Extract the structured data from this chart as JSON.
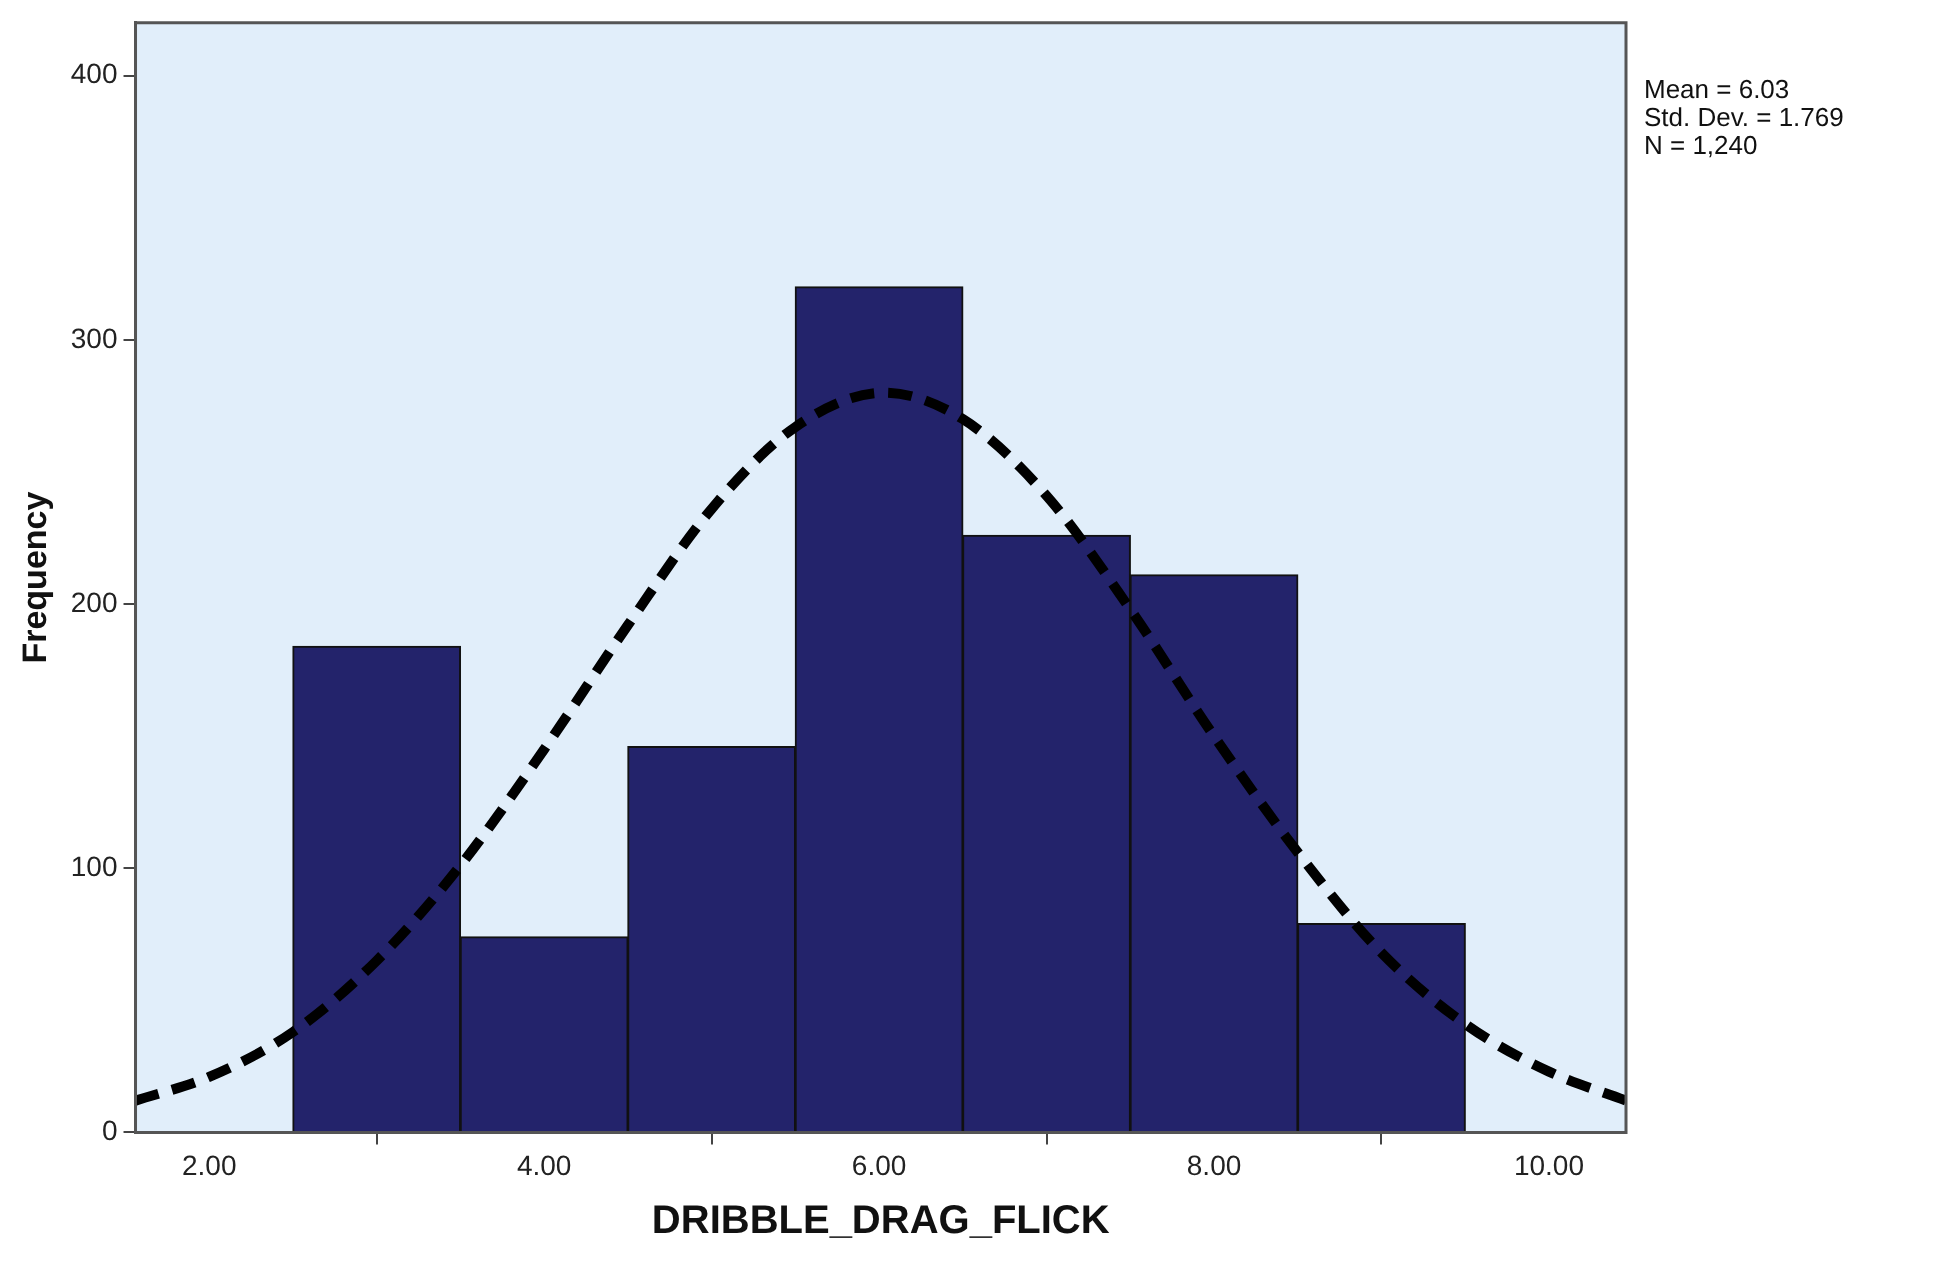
{
  "chart_data": {
    "type": "histogram",
    "xlabel": "DRIBBLE_DRAG_FLICK",
    "ylabel": "Frequency",
    "bins": [
      2.5,
      3.5,
      4.5,
      5.5,
      6.5,
      7.5,
      8.5,
      9.5
    ],
    "series": [
      {
        "color": "#23236b",
        "values": [
          184,
          74,
          146,
          320,
          226,
          211,
          79
        ]
      },
      {
        "type": "line",
        "color": "#000000",
        "line_style": "dashed",
        "x": [
          1.56,
          2,
          2.5,
          3,
          3.5,
          4,
          4.5,
          5,
          5.5,
          6.03,
          6.5,
          7,
          7.5,
          8,
          8.5,
          9,
          9.5,
          10,
          10.46
        ],
        "values": [
          12,
          21,
          38,
          65,
          101,
          145,
          192,
          236,
          267,
          280,
          270,
          241,
          198,
          150,
          106,
          68,
          41,
          23,
          12
        ]
      }
    ],
    "xlim": [
      1.56,
      10.46
    ],
    "xticks": [
      {
        "value": 2,
        "label": "2.00"
      },
      {
        "value": 4,
        "label": "4.00"
      },
      {
        "value": 6,
        "label": "6.00"
      },
      {
        "value": 8,
        "label": "8.00"
      },
      {
        "value": 10,
        "label": "10.00"
      }
    ],
    "ylim": [
      0,
      420
    ],
    "yticks": [
      0,
      100,
      200,
      300,
      400
    ],
    "grid": false,
    "legend": false,
    "marker": "none",
    "annotations": [
      "Mean = 6.03",
      "Std. Dev. = 1.769",
      "N = 1,240"
    ]
  }
}
